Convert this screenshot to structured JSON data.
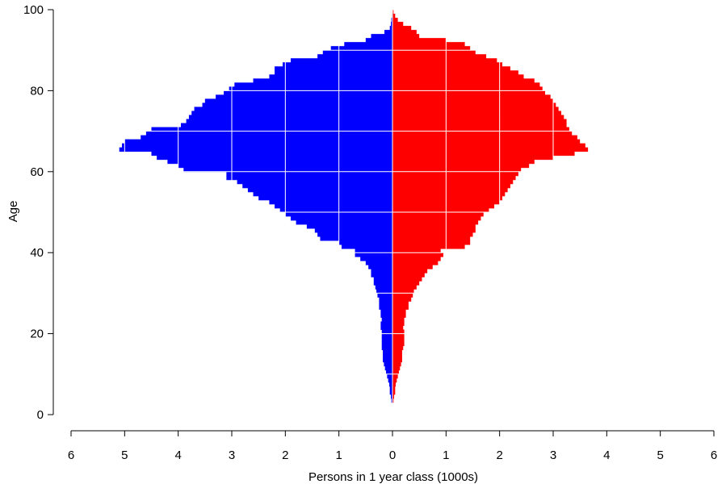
{
  "chart_data": {
    "type": "bar",
    "orientation": "horizontal",
    "subtype": "population-pyramid",
    "title": "",
    "xlabel": "Persons in 1 year class (1000s)",
    "ylabel": "Age",
    "xlim": [
      -6,
      6
    ],
    "ylim": [
      0,
      100
    ],
    "x_ticks": [
      -6,
      -5,
      -4,
      -3,
      -2,
      -1,
      0,
      1,
      2,
      3,
      4,
      5,
      6
    ],
    "x_tick_labels": [
      "6",
      "5",
      "4",
      "3",
      "2",
      "1",
      "0",
      "1",
      "2",
      "3",
      "4",
      "5",
      "6"
    ],
    "y_ticks": [
      0,
      20,
      40,
      60,
      80,
      100
    ],
    "y_tick_labels": [
      "0",
      "20",
      "40",
      "60",
      "80",
      "100"
    ],
    "grid": "white gridlines over bars",
    "legend": "none",
    "colors": {
      "left": "#0000ff",
      "right": "#ff0000",
      "grid": "#ffffff"
    },
    "ages": [
      3,
      4,
      5,
      6,
      7,
      8,
      9,
      10,
      11,
      12,
      13,
      14,
      15,
      16,
      17,
      18,
      19,
      20,
      21,
      22,
      23,
      24,
      25,
      26,
      27,
      28,
      29,
      30,
      31,
      32,
      33,
      34,
      35,
      36,
      37,
      38,
      39,
      40,
      41,
      42,
      43,
      44,
      45,
      46,
      47,
      48,
      49,
      50,
      51,
      52,
      53,
      54,
      55,
      56,
      57,
      58,
      59,
      60,
      61,
      62,
      63,
      64,
      65,
      66,
      67,
      68,
      69,
      70,
      71,
      72,
      73,
      74,
      75,
      76,
      77,
      78,
      79,
      80,
      81,
      82,
      83,
      84,
      85,
      86,
      87,
      88,
      89,
      90,
      91,
      92,
      93,
      94,
      95,
      96,
      97,
      98,
      99
    ],
    "series": [
      {
        "side": "left",
        "values": [
          0.02,
          0.03,
          0.05,
          0.05,
          0.06,
          0.08,
          0.1,
          0.12,
          0.14,
          0.16,
          0.18,
          0.18,
          0.18,
          0.2,
          0.2,
          0.2,
          0.2,
          0.2,
          0.22,
          0.22,
          0.2,
          0.22,
          0.22,
          0.25,
          0.25,
          0.25,
          0.28,
          0.3,
          0.32,
          0.35,
          0.35,
          0.4,
          0.4,
          0.45,
          0.5,
          0.6,
          0.7,
          0.7,
          0.95,
          1.0,
          1.35,
          1.4,
          1.45,
          1.6,
          1.8,
          1.9,
          2.0,
          2.1,
          2.2,
          2.3,
          2.5,
          2.6,
          2.7,
          2.8,
          2.9,
          3.1,
          3.1,
          3.9,
          4.0,
          4.2,
          4.4,
          4.5,
          5.1,
          5.05,
          5.0,
          4.7,
          4.6,
          4.5,
          3.95,
          3.85,
          3.8,
          3.75,
          3.7,
          3.55,
          3.5,
          3.3,
          3.15,
          3.05,
          2.95,
          2.6,
          2.3,
          2.2,
          2.2,
          2.05,
          1.9,
          1.4,
          1.3,
          1.15,
          0.9,
          0.5,
          0.4,
          0.15,
          0.05,
          0.03,
          0.02,
          0.01,
          0.0
        ]
      },
      {
        "side": "right",
        "values": [
          0.02,
          0.03,
          0.05,
          0.05,
          0.06,
          0.08,
          0.1,
          0.12,
          0.14,
          0.16,
          0.18,
          0.18,
          0.18,
          0.2,
          0.22,
          0.22,
          0.22,
          0.22,
          0.2,
          0.22,
          0.22,
          0.25,
          0.25,
          0.3,
          0.3,
          0.35,
          0.38,
          0.4,
          0.45,
          0.5,
          0.55,
          0.6,
          0.65,
          0.75,
          0.85,
          0.9,
          0.95,
          0.9,
          1.35,
          1.45,
          1.45,
          1.5,
          1.55,
          1.55,
          1.6,
          1.65,
          1.7,
          1.8,
          1.9,
          2.0,
          2.05,
          2.1,
          2.15,
          2.2,
          2.25,
          2.3,
          2.35,
          2.4,
          2.55,
          2.65,
          3.0,
          3.4,
          3.65,
          3.6,
          3.5,
          3.45,
          3.35,
          3.3,
          3.25,
          3.25,
          3.2,
          3.15,
          3.1,
          3.05,
          3.0,
          2.95,
          2.85,
          2.8,
          2.75,
          2.65,
          2.45,
          2.35,
          2.2,
          2.05,
          1.95,
          1.75,
          1.55,
          1.45,
          1.35,
          1.0,
          0.5,
          0.45,
          0.35,
          0.2,
          0.1,
          0.05,
          0.02
        ]
      }
    ]
  }
}
